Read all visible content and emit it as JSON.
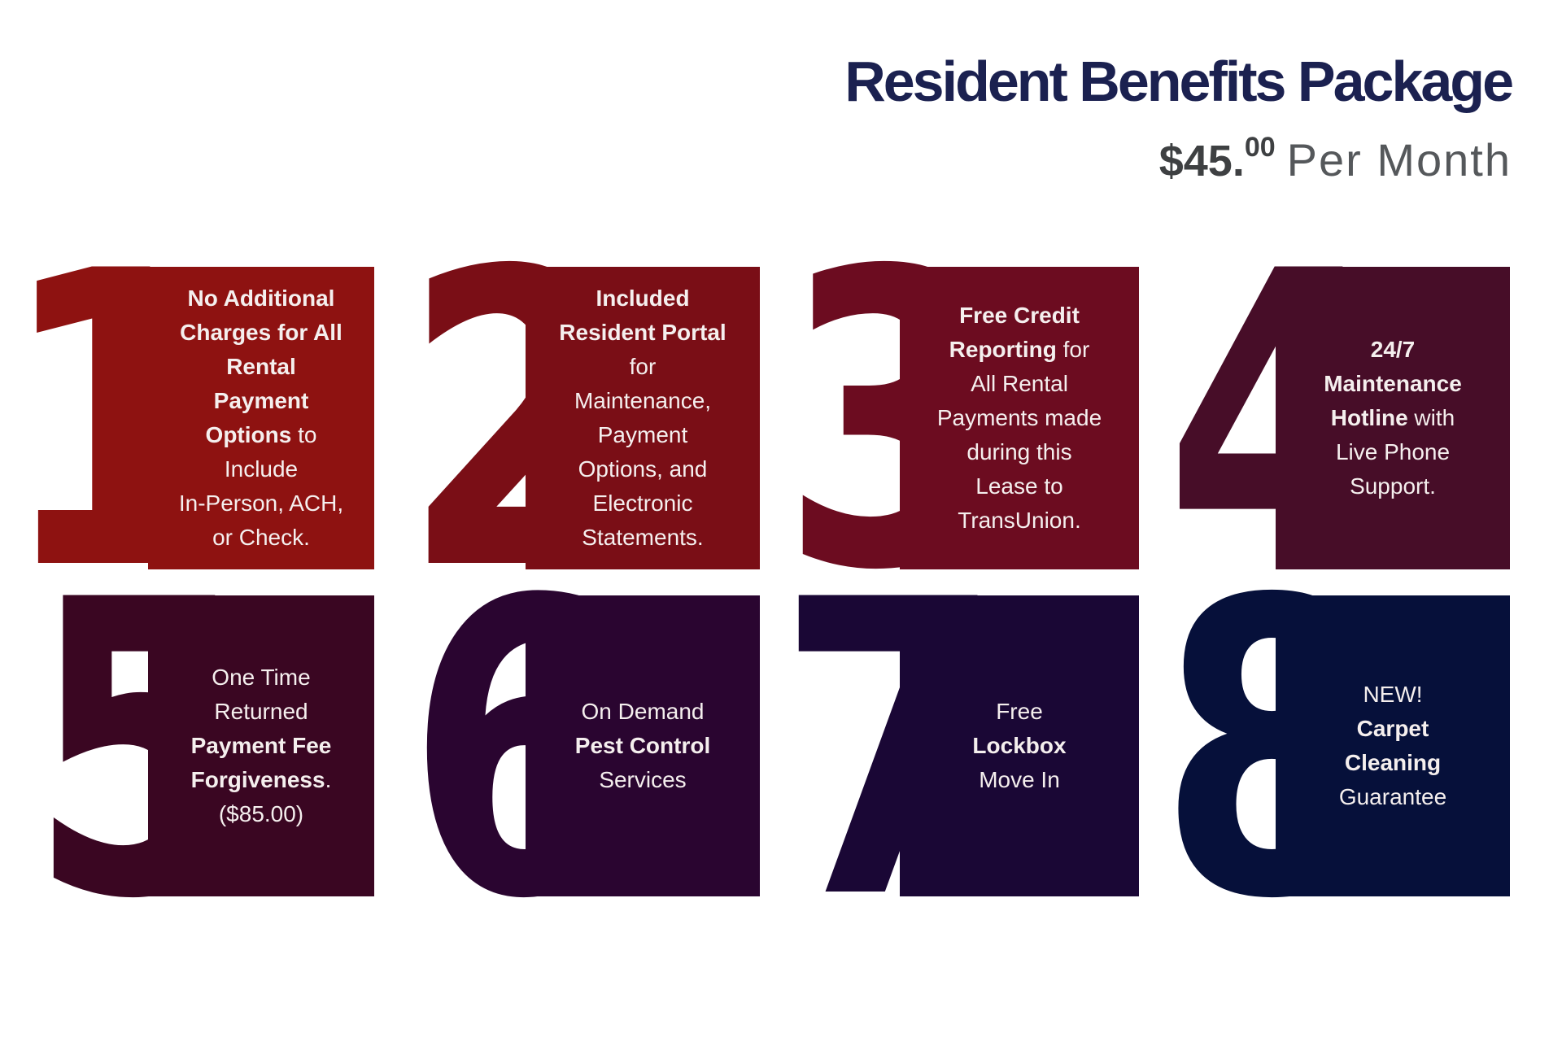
{
  "header": {
    "title": "Resident Benefits Package",
    "title_color": "#1B2150",
    "price_amount": "$45.",
    "price_cents": "00",
    "price_period": "Per Month",
    "price_amount_color": "#3E4042",
    "price_period_color": "#55585B"
  },
  "card_text_color": "#F5EFEE",
  "cards": [
    {
      "number": "1",
      "color": "#8E1211",
      "lines": [
        [
          {
            "t": "No Additional",
            "b": true
          }
        ],
        [
          {
            "t": "Charges for All",
            "b": true
          }
        ],
        [
          {
            "t": "Rental",
            "b": true
          }
        ],
        [
          {
            "t": "Payment",
            "b": true
          }
        ],
        [
          {
            "t": "Options",
            "b": true
          },
          {
            "t": " to",
            "b": false
          }
        ],
        [
          {
            "t": "Include",
            "b": false
          }
        ],
        [
          {
            "t": "In-Person, ACH,",
            "b": false
          }
        ],
        [
          {
            "t": "or Check.",
            "b": false
          }
        ]
      ]
    },
    {
      "number": "2",
      "color": "#7A0E16",
      "lines": [
        [
          {
            "t": "Included",
            "b": true
          }
        ],
        [
          {
            "t": "Resident Portal",
            "b": true
          }
        ],
        [
          {
            "t": "for",
            "b": false
          }
        ],
        [
          {
            "t": "Maintenance,",
            "b": false
          }
        ],
        [
          {
            "t": "Payment",
            "b": false
          }
        ],
        [
          {
            "t": "Options, and",
            "b": false
          }
        ],
        [
          {
            "t": "Electronic",
            "b": false
          }
        ],
        [
          {
            "t": "Statements.",
            "b": false
          }
        ]
      ]
    },
    {
      "number": "3",
      "color": "#6C0C20",
      "lines": [
        [
          {
            "t": "Free Credit",
            "b": true
          }
        ],
        [
          {
            "t": "Reporting",
            "b": true
          },
          {
            "t": " for",
            "b": false
          }
        ],
        [
          {
            "t": "All Rental",
            "b": false
          }
        ],
        [
          {
            "t": "Payments made",
            "b": false
          }
        ],
        [
          {
            "t": "during this",
            "b": false
          }
        ],
        [
          {
            "t": "Lease to",
            "b": false
          }
        ],
        [
          {
            "t": "TransUnion.",
            "b": false
          }
        ]
      ]
    },
    {
      "number": "4",
      "color": "#470D28",
      "lines": [
        [
          {
            "t": "24/7",
            "b": true
          }
        ],
        [
          {
            "t": "Maintenance",
            "b": true
          }
        ],
        [
          {
            "t": "Hotline",
            "b": true
          },
          {
            "t": " with",
            "b": false
          }
        ],
        [
          {
            "t": "Live Phone",
            "b": false
          }
        ],
        [
          {
            "t": "Support.",
            "b": false
          }
        ]
      ]
    },
    {
      "number": "5",
      "color": "#3A0622",
      "lines": [
        [
          {
            "t": "One Time",
            "b": false
          }
        ],
        [
          {
            "t": "Returned",
            "b": false
          }
        ],
        [
          {
            "t": "Payment Fee",
            "b": true
          }
        ],
        [
          {
            "t": "Forgiveness",
            "b": true
          },
          {
            "t": ".",
            "b": false
          }
        ],
        [
          {
            "t": "($85.00)",
            "b": false
          }
        ]
      ]
    },
    {
      "number": "6",
      "color": "#2A0530",
      "lines": [
        [
          {
            "t": "On Demand",
            "b": false
          }
        ],
        [
          {
            "t": "Pest Control",
            "b": true
          }
        ],
        [
          {
            "t": "Services",
            "b": false
          }
        ]
      ]
    },
    {
      "number": "7",
      "color": "#1A0735",
      "lines": [
        [
          {
            "t": "Free",
            "b": false
          }
        ],
        [
          {
            "t": "Lockbox",
            "b": true
          }
        ],
        [
          {
            "t": "Move In",
            "b": false
          }
        ]
      ]
    },
    {
      "number": "8",
      "color": "#06103A",
      "lines": [
        [
          {
            "t": "NEW!",
            "b": false
          }
        ],
        [
          {
            "t": "Carpet",
            "b": true
          }
        ],
        [
          {
            "t": "Cleaning",
            "b": true
          }
        ],
        [
          {
            "t": "Guarantee",
            "b": false
          }
        ]
      ]
    }
  ]
}
